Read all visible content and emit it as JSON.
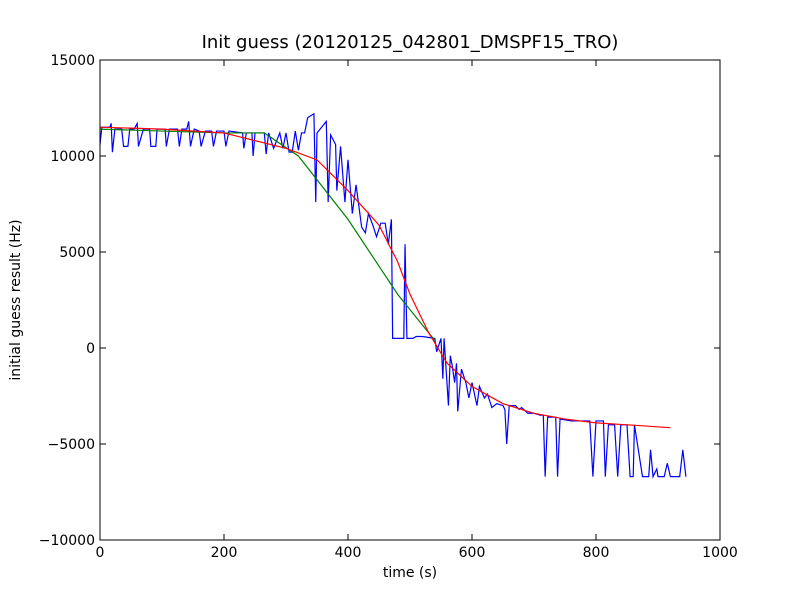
{
  "chart_data": {
    "type": "line",
    "title": "Init guess (20120125_042801_DMSPF15_TRO)",
    "x_label": "time (s)",
    "y_label": "initial guess result (Hz)",
    "xlim": [
      0,
      1000
    ],
    "xticks": [
      0,
      200,
      400,
      600,
      800,
      1000
    ],
    "ylim": [
      -10000,
      15000
    ],
    "yticks": [
      {
        "value": -10000,
        "label": "−10000"
      },
      {
        "value": -5000,
        "label": "−5000"
      },
      0,
      5000,
      10000,
      15000
    ],
    "series": [
      {
        "color": "#0000ff",
        "x": [
          0,
          3,
          16,
          18,
          20,
          24,
          35,
          38,
          45,
          48,
          55,
          60,
          62,
          70,
          80,
          82,
          90,
          92,
          105,
          107,
          112,
          125,
          128,
          132,
          140,
          143,
          146,
          152,
          160,
          163,
          170,
          180,
          183,
          188,
          200,
          203,
          208,
          230,
          232,
          236,
          245,
          247,
          250,
          265,
          268,
          272,
          280,
          290,
          295,
          300,
          305,
          310,
          315,
          320,
          325,
          330,
          335,
          345,
          348,
          350,
          365,
          368,
          372,
          380,
          382,
          388,
          395,
          400,
          407,
          413,
          422,
          428,
          433,
          440,
          446,
          453,
          460,
          465,
          470,
          472,
          490,
          492,
          495,
          505,
          510,
          520,
          540,
          543,
          550,
          553,
          555,
          562,
          565,
          568,
          572,
          575,
          577,
          583,
          590,
          595,
          600,
          608,
          612,
          620,
          625,
          632,
          640,
          650,
          653,
          656,
          660,
          670,
          676,
          680,
          690,
          700,
          710,
          715,
          718,
          722,
          735,
          738,
          742,
          760,
          790,
          795,
          800,
          812,
          815,
          820,
          830,
          835,
          840,
          850,
          855,
          860,
          862,
          875,
          885,
          888,
          892,
          898,
          900,
          910,
          915,
          920,
          935,
          940,
          945
        ],
        "values": [
          10600,
          11500,
          11500,
          11700,
          10200,
          11400,
          11400,
          10500,
          10500,
          11400,
          11400,
          11700,
          10500,
          11400,
          11400,
          10500,
          10500,
          11400,
          11400,
          10500,
          11400,
          11400,
          10500,
          11400,
          11400,
          11800,
          10500,
          11400,
          11300,
          10500,
          11300,
          11300,
          10500,
          11300,
          11300,
          10500,
          11300,
          11200,
          10400,
          11200,
          11200,
          10000,
          11200,
          11200,
          10100,
          11200,
          10400,
          11200,
          10400,
          11200,
          10200,
          10200,
          11300,
          10300,
          11200,
          11200,
          12000,
          12200,
          7600,
          11200,
          11800,
          7600,
          11100,
          10600,
          8200,
          10500,
          7600,
          9800,
          7000,
          8500,
          6300,
          6000,
          7000,
          6400,
          5800,
          6500,
          6500,
          5400,
          6700,
          500,
          500,
          5400,
          500,
          500,
          600,
          600,
          500,
          -200,
          500,
          -1600,
          500,
          -3000,
          -400,
          -900,
          -1800,
          -800,
          -3300,
          -1100,
          -1800,
          -2600,
          -1800,
          -3000,
          -2000,
          -2600,
          -2400,
          -3100,
          -2900,
          -3000,
          -3200,
          -5000,
          -3000,
          -3000,
          -3200,
          -3100,
          -3400,
          -3400,
          -3500,
          -3500,
          -6700,
          -3600,
          -3600,
          -6700,
          -3700,
          -3800,
          -3800,
          -6700,
          -3800,
          -3800,
          -6700,
          -4000,
          -4000,
          -6700,
          -4000,
          -4000,
          -6700,
          -6700,
          -4000,
          -6700,
          -6700,
          -5300,
          -6700,
          -6300,
          -6700,
          -6700,
          -6000,
          -6700,
          -6700,
          -5300,
          -6700
        ]
      },
      {
        "color": "#008000",
        "x": [
          0,
          100,
          200,
          265,
          320,
          400,
          480,
          540
        ],
        "values": [
          11400,
          11300,
          11200,
          11200,
          10000,
          6700,
          2800,
          400
        ]
      },
      {
        "color": "#ff0000",
        "x": [
          0,
          100,
          200,
          300,
          350,
          400,
          450,
          480,
          500,
          530,
          560,
          600,
          650,
          700,
          750,
          800,
          850,
          920
        ],
        "values": [
          11500,
          11400,
          11200,
          10400,
          9800,
          8200,
          6400,
          4500,
          2800,
          800,
          -800,
          -2000,
          -2900,
          -3400,
          -3700,
          -3900,
          -4000,
          -4150
        ]
      }
    ]
  }
}
